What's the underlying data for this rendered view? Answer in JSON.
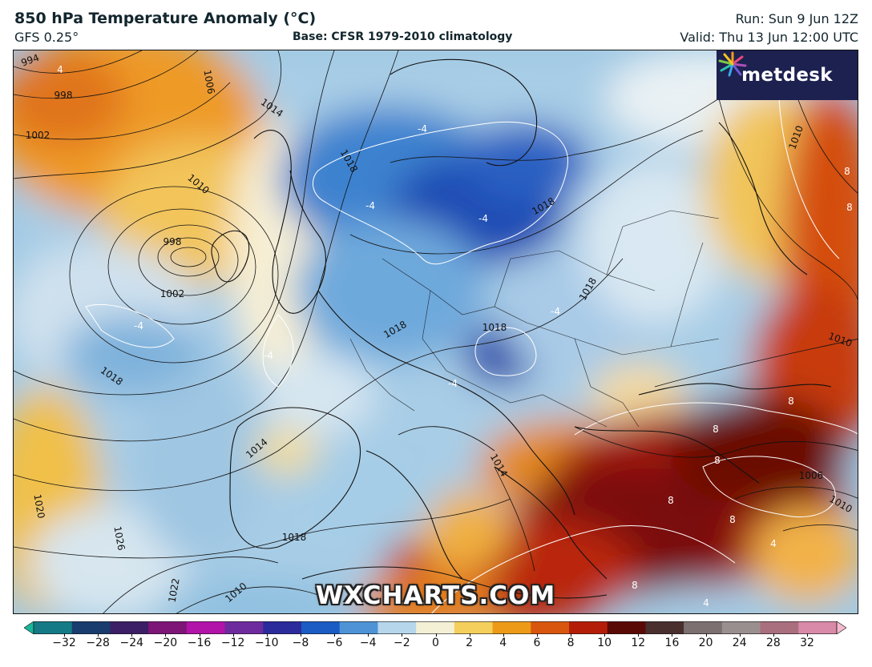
{
  "header": {
    "title": "850 hPa Temperature Anomaly (°C)",
    "model": "GFS 0.25°",
    "base": "Base: CFSR 1979-2010 climatology",
    "run": "Run: Sun 9 Jun 12Z",
    "valid": "Valid: Thu 13 Jun 12:00 UTC"
  },
  "logo": {
    "text": "metdesk",
    "icon": "starburst-icon"
  },
  "watermark": "WXCHARTS.COM",
  "colorbar": {
    "ticks": [
      "−32",
      "−28",
      "−24",
      "−20",
      "−16",
      "−12",
      "−10",
      "−8",
      "−6",
      "−4",
      "−2",
      "0",
      "2",
      "4",
      "6",
      "8",
      "10",
      "12",
      "16",
      "20",
      "24",
      "28",
      "32"
    ],
    "colors": [
      "#17b79a",
      "#147a86",
      "#183c6e",
      "#3b1e66",
      "#7d1677",
      "#b213a8",
      "#6e2b9e",
      "#2c2b9c",
      "#1b5bc4",
      "#4d93d6",
      "#b6d6ec",
      "#f3f0d6",
      "#f4cf5c",
      "#ec9a18",
      "#d9560e",
      "#b41e09",
      "#5a0a06",
      "#4a2f2f",
      "#7c7070",
      "#9a8f8f",
      "#a96f7e",
      "#d98aa8",
      "#f5b9cf"
    ]
  },
  "isobar_labels": [
    "994",
    "998",
    "1002",
    "1006",
    "1010",
    "1014",
    "1018",
    "1018",
    "1018",
    "1018",
    "998",
    "1002",
    "1018",
    "1014",
    "1018",
    "1014",
    "1010",
    "1006",
    "1010",
    "1010",
    "1020",
    "1026",
    "1022",
    "1010",
    "1018"
  ],
  "anomaly_labels": [
    "4",
    "-4",
    "-4",
    "-4",
    "-4",
    "-4",
    "-4",
    "-4",
    "8",
    "8",
    "8",
    "8",
    "8",
    "8",
    "8",
    "4",
    "4",
    "8"
  ]
}
